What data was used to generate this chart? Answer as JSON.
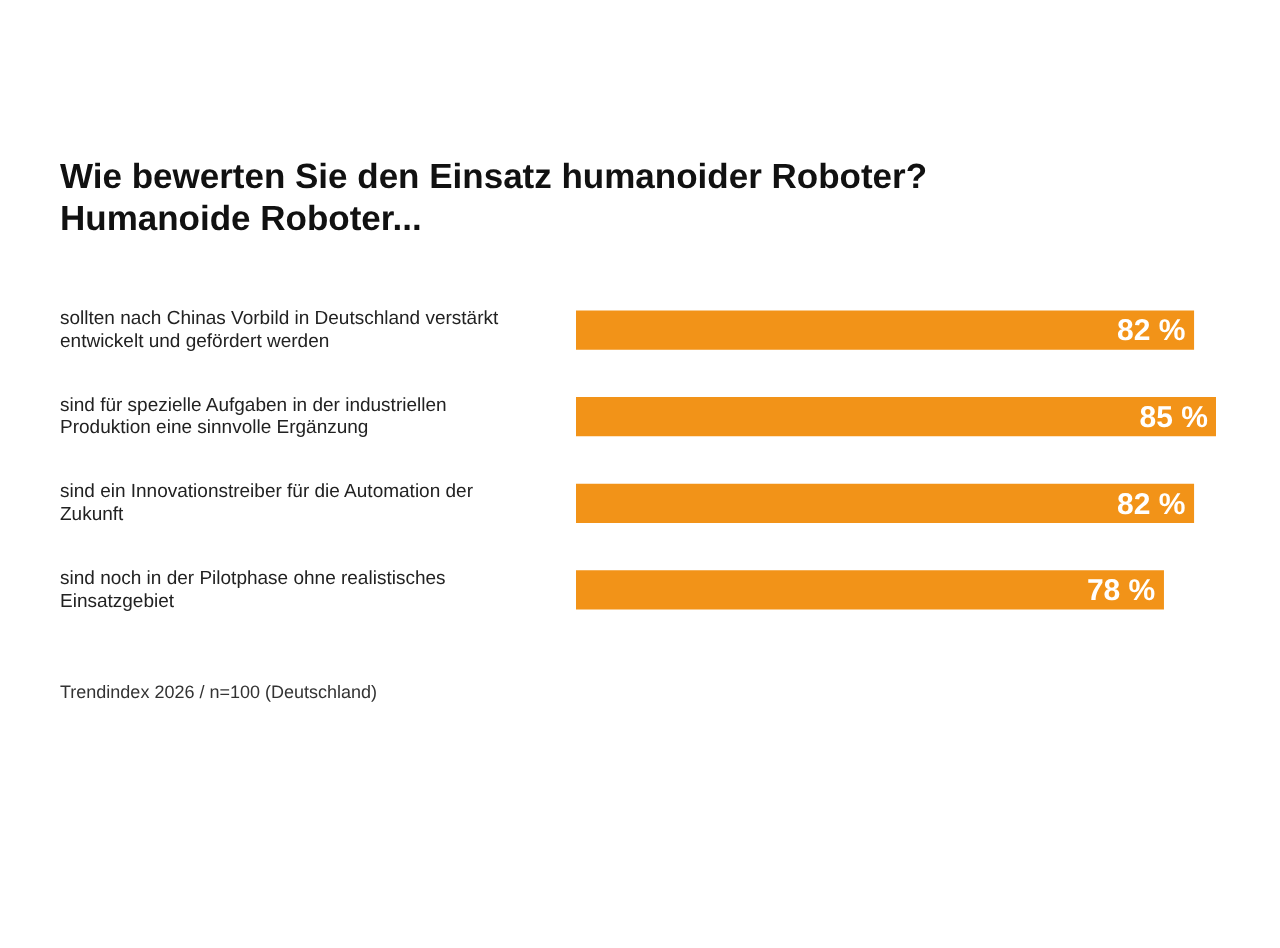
{
  "chart_data": {
    "type": "bar",
    "orientation": "horizontal",
    "title": "Wie bewerten Sie den Einsatz humanoider Roboter?\nHumanoide Roboter...",
    "categories": [
      "sollten nach Chinas Vorbild in Deutschland verstärkt entwickelt und gefördert werden",
      "sind für spezielle Aufgaben in der industriellen Produktion eine sinnvolle Ergänzung",
      "sind ein Innovationstreiber für die Automation der Zukunft",
      "sind noch in der Pilotphase ohne realistisches Einsatzgebiet"
    ],
    "values": [
      82,
      85,
      82,
      78
    ],
    "color": "#f29318",
    "data_labels": true,
    "value_labels": [
      "82 %",
      "85 %",
      "82 %",
      "78 %"
    ],
    "annotations": [
      "Trendindex 2026 / n=100 (Deutschland)"
    ],
    "legend": false
  }
}
